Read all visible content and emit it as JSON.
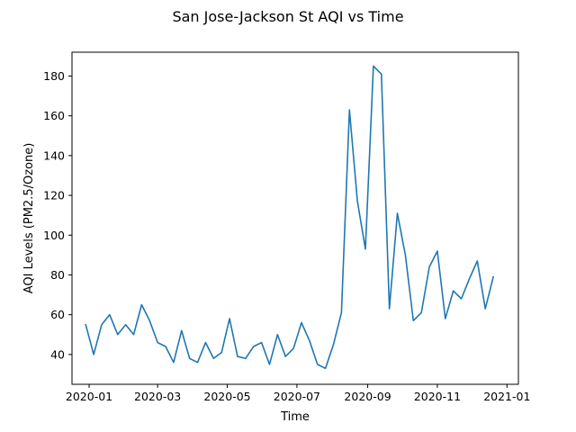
{
  "chart_data": {
    "type": "line",
    "title": "San Jose-Jackson St AQI vs Time",
    "xlabel": "Time",
    "ylabel": "AQI Levels (PM2.5/Ozone)",
    "xlim": [
      "2019-12-17",
      "2021-01-11"
    ],
    "ylim": [
      25,
      192
    ],
    "grid": false,
    "x_ticks": [
      "2020-01",
      "2020-03",
      "2020-05",
      "2020-07",
      "2020-09",
      "2020-11",
      "2021-01"
    ],
    "y_ticks": [
      40,
      60,
      80,
      100,
      120,
      140,
      160,
      180
    ],
    "series": [
      {
        "color": "#1f77b4",
        "x": [
          "2019-12-29",
          "2020-01-05",
          "2020-01-12",
          "2020-01-19",
          "2020-01-26",
          "2020-02-02",
          "2020-02-09",
          "2020-02-16",
          "2020-02-23",
          "2020-03-01",
          "2020-03-08",
          "2020-03-15",
          "2020-03-22",
          "2020-03-29",
          "2020-04-05",
          "2020-04-12",
          "2020-04-19",
          "2020-04-26",
          "2020-05-03",
          "2020-05-10",
          "2020-05-17",
          "2020-05-24",
          "2020-05-31",
          "2020-06-07",
          "2020-06-14",
          "2020-06-21",
          "2020-06-28",
          "2020-07-05",
          "2020-07-12",
          "2020-07-19",
          "2020-07-26",
          "2020-08-02",
          "2020-08-09",
          "2020-08-16",
          "2020-08-23",
          "2020-08-30",
          "2020-09-06",
          "2020-09-13",
          "2020-09-20",
          "2020-09-27",
          "2020-10-04",
          "2020-10-11",
          "2020-10-18",
          "2020-10-25",
          "2020-11-01",
          "2020-11-08",
          "2020-11-15",
          "2020-11-22",
          "2020-11-29",
          "2020-12-06",
          "2020-12-13",
          "2020-12-20"
        ],
        "y": [
          55,
          40,
          55,
          60,
          50,
          55,
          50,
          65,
          57,
          46,
          44,
          36,
          52,
          38,
          36,
          46,
          38,
          41,
          58,
          39,
          38,
          44,
          46,
          35,
          50,
          39,
          43,
          56,
          47,
          35,
          33,
          45,
          61,
          163,
          117,
          93,
          185,
          181,
          63,
          111,
          90,
          57,
          61,
          84,
          92,
          58,
          72,
          68,
          78,
          87,
          63,
          79
        ]
      }
    ]
  }
}
